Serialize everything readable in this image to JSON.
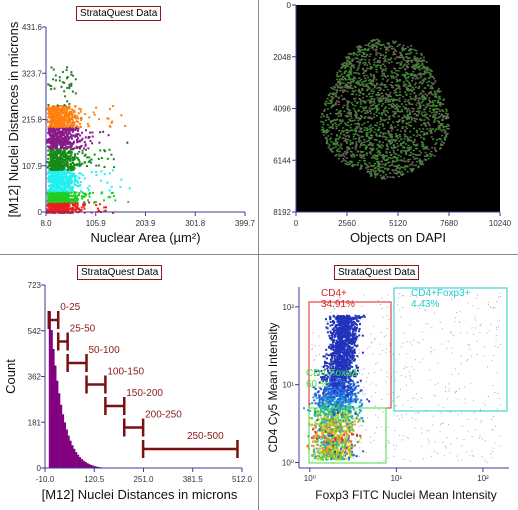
{
  "panels": {
    "top_left": {
      "title": "StrataQuest Data",
      "chart_data": {
        "type": "scatter",
        "title": "StrataQuest Data",
        "xlabel": "Nuclear Area (µm²)",
        "ylabel": "[M12] Nuclei Distances in microns",
        "x_ticks": [
          "8.0",
          "105.9",
          "203.9",
          "301.8",
          "399.7"
        ],
        "y_ticks": [
          "0",
          "107.9",
          "215.8",
          "323.7",
          "431.6"
        ],
        "xlim": [
          8.0,
          399.7
        ],
        "ylim": [
          0,
          431.6
        ],
        "series": [
          {
            "color": "#ee1c1c",
            "y_range": [
              0,
              25
            ]
          },
          {
            "color": "#22cc22",
            "y_range": [
              25,
              50
            ]
          },
          {
            "color": "#22eeee",
            "y_range": [
              50,
              100
            ]
          },
          {
            "color": "#168a16",
            "y_range": [
              100,
              150
            ]
          },
          {
            "color": "#8a1a8a",
            "y_range": [
              150,
              200
            ]
          },
          {
            "color": "#ff7f0e",
            "y_range": [
              200,
              250
            ]
          },
          {
            "color": "#2a7a2a",
            "y_range": [
              250,
              500
            ]
          }
        ]
      }
    },
    "top_right": {
      "chart_data": {
        "type": "scatter",
        "xlabel": "Objects on DAPI",
        "x_ticks": [
          "0",
          "2560",
          "5120",
          "7680",
          "10240"
        ],
        "y_ticks": [
          "0",
          "2048",
          "4096",
          "6144",
          "8192"
        ],
        "xlim": [
          0,
          10240
        ],
        "ylim": [
          0,
          8192
        ],
        "colors": {
          "background": "#000000",
          "tissue": "#4a7a3a"
        }
      }
    },
    "bottom_left": {
      "title": "StrataQuest Data",
      "chart_data": {
        "type": "bar",
        "title": "StrataQuest Data",
        "xlabel": "[M12] Nuclei Distances in microns",
        "ylabel": "Count",
        "x_ticks": [
          "-10.0",
          "120.5",
          "251.0",
          "381.5",
          "512.0"
        ],
        "y_ticks": [
          "0",
          "181",
          "362",
          "542",
          "723"
        ],
        "xlim": [
          -10.0,
          512.0
        ],
        "ylim": [
          0,
          723
        ],
        "bar_color": "#800080",
        "histogram": [
          {
            "x": 0,
            "count": 620
          },
          {
            "x": 5,
            "count": 545
          },
          {
            "x": 10,
            "count": 470
          },
          {
            "x": 15,
            "count": 405
          },
          {
            "x": 20,
            "count": 345
          },
          {
            "x": 25,
            "count": 295
          },
          {
            "x": 30,
            "count": 250
          },
          {
            "x": 35,
            "count": 212
          },
          {
            "x": 40,
            "count": 180
          },
          {
            "x": 45,
            "count": 152
          },
          {
            "x": 50,
            "count": 128
          },
          {
            "x": 55,
            "count": 108
          },
          {
            "x": 60,
            "count": 90
          },
          {
            "x": 65,
            "count": 76
          },
          {
            "x": 70,
            "count": 63
          },
          {
            "x": 75,
            "count": 52
          },
          {
            "x": 80,
            "count": 43
          },
          {
            "x": 85,
            "count": 35
          },
          {
            "x": 90,
            "count": 29
          },
          {
            "x": 95,
            "count": 24
          },
          {
            "x": 100,
            "count": 19
          },
          {
            "x": 105,
            "count": 15
          },
          {
            "x": 110,
            "count": 12
          },
          {
            "x": 115,
            "count": 9
          },
          {
            "x": 120,
            "count": 7
          },
          {
            "x": 125,
            "count": 5
          },
          {
            "x": 130,
            "count": 4
          },
          {
            "x": 135,
            "count": 3
          },
          {
            "x": 140,
            "count": 2
          },
          {
            "x": 145,
            "count": 2
          },
          {
            "x": 150,
            "count": 1
          },
          {
            "x": 160,
            "count": 1
          }
        ],
        "gates": [
          {
            "label": "0-25",
            "x0": 0,
            "x1": 25,
            "level": 4
          },
          {
            "label": "25-50",
            "x0": 25,
            "x1": 50,
            "level": 3
          },
          {
            "label": "50-100",
            "x0": 50,
            "x1": 100,
            "level": 2
          },
          {
            "label": "100-150",
            "x0": 100,
            "x1": 150,
            "level": 1
          },
          {
            "label": "150-200",
            "x0": 150,
            "x1": 200,
            "level": 0
          },
          {
            "label": "200-250",
            "x0": 200,
            "x1": 250,
            "level": -1
          },
          {
            "label": "250-500",
            "x0": 250,
            "x1": 500,
            "level": -2
          }
        ],
        "gate_color": "#7a1010"
      }
    },
    "bottom_right": {
      "title": "StrataQuest Data",
      "chart_data": {
        "type": "scatter",
        "title": "StrataQuest Data",
        "xlabel": "Foxp3  FITC Nuclei Mean Intensity",
        "ylabel": "CD4 Cy5 Mean Intensity",
        "scale": "log",
        "x_ticks": [
          "10⁰",
          "10¹",
          "10²"
        ],
        "y_ticks": [
          "10⁰",
          "10¹",
          "10²"
        ],
        "xlim": [
          0.75,
          200
        ],
        "ylim": [
          0.85,
          180
        ],
        "quadrants": [
          {
            "name": "CD4+",
            "percent": "34.91%",
            "color": "#dd2222"
          },
          {
            "name": "CD4+Foxp3+",
            "percent": "4.43%",
            "color": "#22cccc"
          },
          {
            "name": "CD4-Foxp3-",
            "percent": "60.%",
            "color": "#44dd44"
          }
        ]
      }
    }
  }
}
